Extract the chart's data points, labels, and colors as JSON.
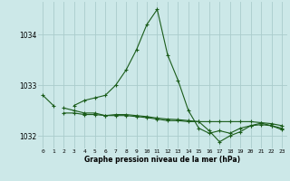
{
  "hours": [
    0,
    1,
    2,
    3,
    4,
    5,
    6,
    7,
    8,
    9,
    10,
    11,
    12,
    13,
    14,
    15,
    16,
    17,
    18,
    19,
    20,
    21,
    22,
    23
  ],
  "line1": [
    1032.8,
    1032.6,
    null,
    1032.6,
    1032.7,
    1032.75,
    1032.8,
    1033.0,
    1033.3,
    1033.7,
    1034.2,
    1034.5,
    1033.6,
    1033.1,
    1032.5,
    1032.15,
    1032.05,
    1032.1,
    1032.05,
    1032.15,
    1032.2,
    1032.25,
    1032.2,
    1032.15
  ],
  "line2": [
    null,
    null,
    1032.55,
    1032.5,
    1032.45,
    1032.45,
    1032.4,
    1032.42,
    1032.42,
    1032.4,
    1032.38,
    1032.35,
    1032.33,
    1032.32,
    1032.3,
    1032.28,
    1032.1,
    1031.88,
    1032.0,
    1032.08,
    1032.2,
    1032.22,
    1032.2,
    1032.12
  ],
  "line3": [
    null,
    null,
    1032.45,
    1032.45,
    1032.42,
    1032.42,
    1032.4,
    1032.4,
    1032.4,
    1032.38,
    1032.36,
    1032.33,
    1032.3,
    1032.3,
    1032.28,
    1032.28,
    1032.28,
    1032.28,
    1032.28,
    1032.28,
    1032.28,
    1032.26,
    1032.24,
    1032.2
  ],
  "bg_color": "#cce8e8",
  "grid_color": "#aacccc",
  "line_color": "#1a5c1a",
  "xlabel": "Graphe pression niveau de la mer (hPa)",
  "ylim": [
    1031.75,
    1034.65
  ],
  "yticks": [
    1032.0,
    1033.0,
    1034.0
  ],
  "xticks": [
    0,
    1,
    2,
    3,
    4,
    5,
    6,
    7,
    8,
    9,
    10,
    11,
    12,
    13,
    14,
    15,
    16,
    17,
    18,
    19,
    20,
    21,
    22,
    23
  ],
  "figsize": [
    3.2,
    2.0
  ],
  "dpi": 100
}
